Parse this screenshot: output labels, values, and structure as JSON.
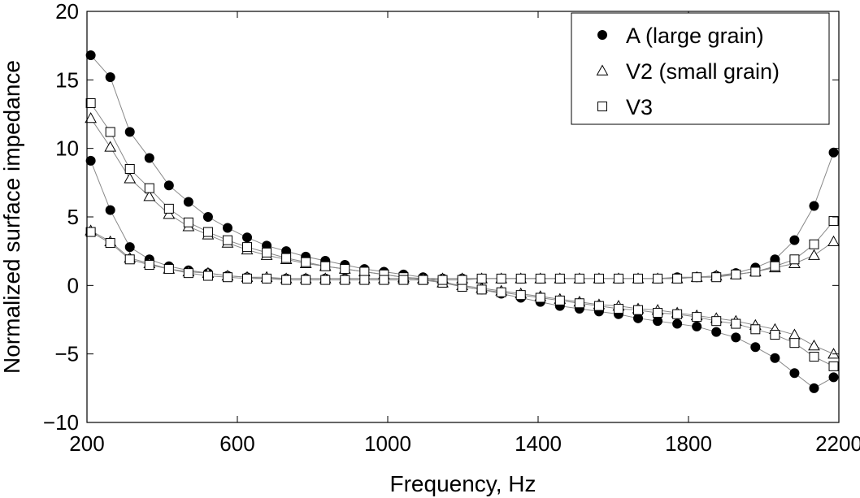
{
  "chart_data": {
    "type": "scatter",
    "title": "",
    "xlabel": "Frequency, Hz",
    "ylabel": "Normalized surface impedance",
    "xlim": [
      200,
      2200
    ],
    "ylim": [
      -10,
      20
    ],
    "xticks": [
      200,
      600,
      1000,
      1400,
      1800,
      2200
    ],
    "yticks": [
      -10,
      -5,
      0,
      5,
      10,
      15,
      20
    ],
    "xtick_labels": [
      "200",
      "600",
      "1000",
      "1400",
      "1800",
      "2200"
    ],
    "ytick_labels": [
      "−10",
      "−5",
      "0",
      "5",
      "10",
      "15",
      "20"
    ],
    "grid": false,
    "legend_position": "top-right",
    "x": [
      210,
      262,
      314,
      366,
      418,
      470,
      522,
      574,
      626,
      678,
      730,
      782,
      834,
      886,
      938,
      990,
      1042,
      1094,
      1146,
      1198,
      1250,
      1302,
      1354,
      1406,
      1458,
      1510,
      1562,
      1614,
      1666,
      1718,
      1770,
      1822,
      1874,
      1926,
      1978,
      2030,
      2082,
      2134,
      2186
    ],
    "series": [
      {
        "name": "A (large grain)",
        "marker": "filled-circle",
        "component": "upper",
        "values": [
          16.8,
          15.2,
          11.2,
          9.3,
          7.3,
          6.1,
          5.0,
          4.2,
          3.5,
          2.9,
          2.5,
          2.1,
          1.8,
          1.5,
          1.2,
          1.0,
          0.8,
          0.6,
          0.3,
          -0.1,
          -0.3,
          -0.6,
          -0.9,
          -1.2,
          -1.5,
          -1.7,
          -1.9,
          -2.1,
          -2.4,
          -2.6,
          -2.8,
          -3.0,
          -3.4,
          -3.8,
          -4.5,
          -5.3,
          -6.4,
          -7.5,
          -6.7
        ]
      },
      {
        "name": "A (large grain)",
        "marker": "filled-circle",
        "component": "lower",
        "values": [
          9.1,
          5.5,
          2.8,
          1.9,
          1.4,
          1.1,
          0.9,
          0.7,
          0.6,
          0.5,
          0.5,
          0.5,
          0.5,
          0.5,
          0.5,
          0.5,
          0.5,
          0.5,
          0.5,
          0.5,
          0.5,
          0.5,
          0.5,
          0.5,
          0.5,
          0.5,
          0.5,
          0.5,
          0.5,
          0.5,
          0.6,
          0.6,
          0.7,
          0.9,
          1.3,
          1.9,
          3.3,
          5.8,
          9.7
        ]
      },
      {
        "name": "V2 (small grain)",
        "marker": "open-triangle",
        "component": "upper",
        "values": [
          12.2,
          10.1,
          7.8,
          6.5,
          5.2,
          4.3,
          3.7,
          3.1,
          2.6,
          2.2,
          1.9,
          1.6,
          1.4,
          1.2,
          1.0,
          0.8,
          0.6,
          0.5,
          0.2,
          0.0,
          -0.2,
          -0.4,
          -0.6,
          -0.8,
          -1.0,
          -1.2,
          -1.4,
          -1.5,
          -1.7,
          -1.8,
          -2.0,
          -2.2,
          -2.4,
          -2.6,
          -2.9,
          -3.2,
          -3.6,
          -4.4,
          -5.0
        ]
      },
      {
        "name": "V2 (small grain)",
        "marker": "open-triangle",
        "component": "lower",
        "values": [
          4.0,
          3.2,
          2.0,
          1.6,
          1.2,
          1.0,
          0.9,
          0.7,
          0.6,
          0.6,
          0.5,
          0.5,
          0.5,
          0.5,
          0.5,
          0.5,
          0.5,
          0.5,
          0.5,
          0.5,
          0.5,
          0.5,
          0.5,
          0.5,
          0.5,
          0.5,
          0.5,
          0.5,
          0.5,
          0.5,
          0.5,
          0.6,
          0.7,
          0.8,
          1.0,
          1.3,
          1.6,
          2.2,
          3.2
        ]
      },
      {
        "name": "V3",
        "marker": "open-square",
        "component": "upper",
        "values": [
          13.3,
          11.2,
          8.5,
          7.1,
          5.6,
          4.6,
          3.9,
          3.3,
          2.8,
          2.4,
          2.0,
          1.7,
          1.4,
          1.2,
          1.0,
          0.8,
          0.6,
          0.4,
          0.2,
          -0.1,
          -0.3,
          -0.5,
          -0.7,
          -0.9,
          -1.1,
          -1.3,
          -1.5,
          -1.7,
          -1.8,
          -2.0,
          -2.1,
          -2.3,
          -2.6,
          -2.8,
          -3.2,
          -3.6,
          -4.2,
          -5.2,
          -5.9
        ]
      },
      {
        "name": "V3",
        "marker": "open-square",
        "component": "lower",
        "values": [
          3.9,
          3.1,
          1.9,
          1.5,
          1.2,
          0.9,
          0.7,
          0.6,
          0.5,
          0.5,
          0.4,
          0.4,
          0.4,
          0.4,
          0.4,
          0.4,
          0.4,
          0.4,
          0.4,
          0.4,
          0.5,
          0.5,
          0.5,
          0.5,
          0.5,
          0.5,
          0.5,
          0.5,
          0.5,
          0.5,
          0.5,
          0.6,
          0.6,
          0.8,
          1.0,
          1.4,
          1.9,
          3.0,
          4.7
        ]
      }
    ],
    "legend": [
      {
        "label": "A (large grain)",
        "marker": "filled-circle"
      },
      {
        "label": "V2 (small grain)",
        "marker": "open-triangle"
      },
      {
        "label": "V3",
        "marker": "open-square"
      }
    ]
  }
}
